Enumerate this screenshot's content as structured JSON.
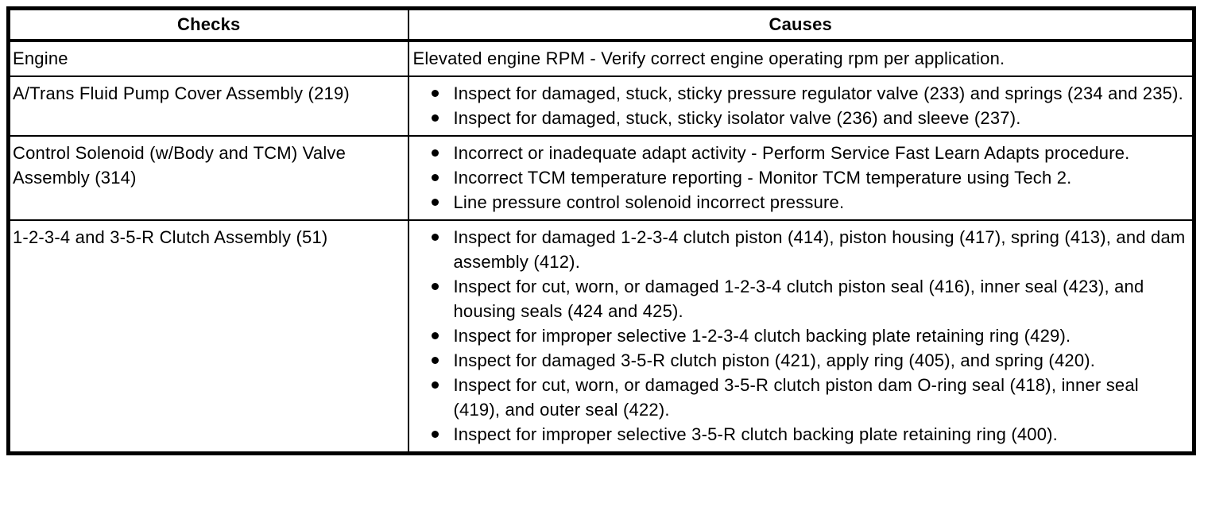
{
  "page": {
    "background_color": "#ffffff",
    "border_color": "#000000",
    "text_color": "#000000"
  },
  "table": {
    "headers": [
      {
        "label": "Checks"
      },
      {
        "label": "Causes"
      }
    ],
    "rows": [
      {
        "check": "Engine",
        "cause_plain": "Elevated engine RPM - Verify correct engine operating rpm per application.",
        "cause_bullets": []
      },
      {
        "check": "A/Trans Fluid Pump Cover Assembly (219)",
        "cause_plain": "",
        "cause_bullets": [
          "Inspect for damaged, stuck, sticky pressure regulator valve (233) and springs (234 and 235).",
          "Inspect for damaged, stuck, sticky isolator valve (236) and sleeve (237)."
        ]
      },
      {
        "check": "Control Solenoid (w/Body and TCM) Valve Assembly (314)",
        "cause_plain": "",
        "cause_bullets": [
          "Incorrect or inadequate adapt activity - Perform Service Fast Learn Adapts procedure.",
          "Incorrect TCM temperature reporting - Monitor TCM temperature using Tech 2.",
          "Line pressure control solenoid incorrect pressure."
        ]
      },
      {
        "check": "1-2-3-4 and 3-5-R Clutch Assembly (51)",
        "cause_plain": "",
        "cause_bullets": [
          "Inspect for damaged 1-2-3-4 clutch piston (414), piston housing (417), spring (413), and dam assembly (412).",
          "Inspect for cut, worn, or damaged 1-2-3-4 clutch piston seal (416), inner seal (423), and housing seals (424 and 425).",
          "Inspect for improper selective 1-2-3-4 clutch backing plate retaining ring (429).",
          "Inspect for damaged 3-5-R clutch piston (421), apply ring (405), and spring (420).",
          "Inspect for cut, worn, or damaged 3-5-R clutch piston dam O-ring seal (418), inner seal (419), and outer seal (422).",
          "Inspect for improper selective 3-5-R clutch backing plate retaining ring (400)."
        ]
      }
    ]
  }
}
